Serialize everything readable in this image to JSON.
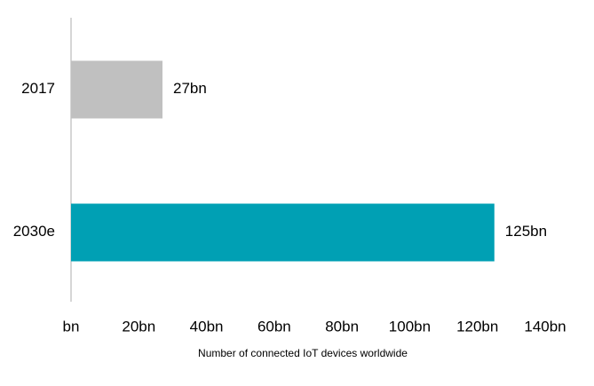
{
  "chart_data": {
    "type": "bar",
    "orientation": "horizontal",
    "categories": [
      "2017",
      "2030e"
    ],
    "values": [
      27,
      125
    ],
    "value_labels": [
      "27bn",
      "125bn"
    ],
    "colors": [
      "#c0c0c0",
      "#00a0b4"
    ],
    "xlim": [
      0,
      140
    ],
    "xticks": [
      {
        "value": 0,
        "label": "bn"
      },
      {
        "value": 20,
        "label": "20bn"
      },
      {
        "value": 40,
        "label": "40bn"
      },
      {
        "value": 60,
        "label": "60bn"
      },
      {
        "value": 80,
        "label": "80bn"
      },
      {
        "value": 100,
        "label": "100bn"
      },
      {
        "value": 120,
        "label": "120bn"
      },
      {
        "value": 140,
        "label": "140bn"
      }
    ],
    "xlabel": "Number of connected IoT devices worldwide",
    "grid": false
  }
}
